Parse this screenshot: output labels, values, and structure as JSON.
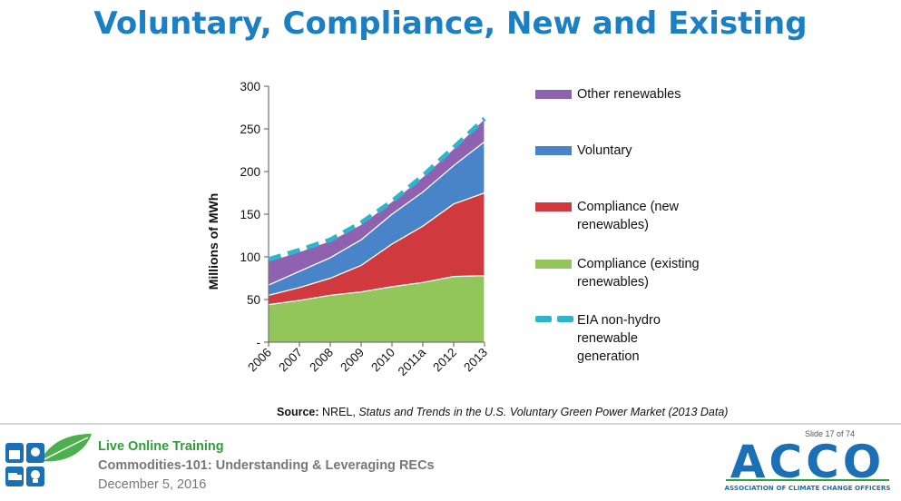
{
  "title": "Voluntary, Compliance, New and Existing",
  "chart_data": {
    "type": "area",
    "categories": [
      "2006",
      "2007",
      "2008",
      "2009",
      "2010",
      "2011a",
      "2012",
      "2013"
    ],
    "ylabel": "Millions of MWh",
    "xlabel": "",
    "ylim": [
      0,
      300
    ],
    "yticks": [
      0,
      50,
      100,
      150,
      200,
      250,
      300
    ],
    "ytick_labels": [
      "-",
      "50",
      "100",
      "150",
      "200",
      "250",
      "300"
    ],
    "stacked": true,
    "series": [
      {
        "name": "Compliance (existing renewables)",
        "color": "#92c55a",
        "values": [
          44,
          49,
          55,
          59,
          65,
          70,
          77,
          78
        ]
      },
      {
        "name": "Compliance (new renewables)",
        "color": "#d0393e",
        "values": [
          11,
          15,
          20,
          31,
          50,
          66,
          85,
          97
        ]
      },
      {
        "name": "Voluntary",
        "color": "#4a84c8",
        "values": [
          12,
          19,
          24,
          30,
          35,
          40,
          45,
          60
        ]
      },
      {
        "name": "Other renewables",
        "color": "#8e62b0",
        "values": [
          28,
          23,
          20,
          18,
          15,
          18,
          20,
          27
        ]
      }
    ],
    "line_series": {
      "name": "EIA non-hydro renewable generation",
      "color": "#30b4c9",
      "style": "dashed",
      "values": [
        97,
        108,
        120,
        140,
        165,
        195,
        228,
        262
      ]
    },
    "legend": [
      {
        "label": "Other renewables",
        "color": "#8e62b0",
        "kind": "swatch"
      },
      {
        "label": "Voluntary",
        "color": "#4a84c8",
        "kind": "swatch"
      },
      {
        "label": "Compliance (new\nrenewables)",
        "color": "#d0393e",
        "kind": "swatch"
      },
      {
        "label": "Compliance (existing\nrenewables)",
        "color": "#92c55a",
        "kind": "swatch"
      },
      {
        "label": "EIA non-hydro\nrenewable\ngeneration",
        "color": "#30b4c9",
        "kind": "dash"
      }
    ],
    "legend_position": "right",
    "grid": false
  },
  "source": {
    "prefix": "Source:",
    "org": " NREL, ",
    "title": "Status and Trends in the U.S. Voluntary Green Power Market (2013 Data)"
  },
  "footer": {
    "slide": "Slide 17 of 74",
    "live": "Live Online Training",
    "course": "Commodities-101: Understanding & Leveraging RECs",
    "date": "December 5, 2016",
    "logo_text": "ACCO",
    "logo_sub": "ASSOCIATION OF CLIMATE CHANGE OFFICERS",
    "brand_blue": "#1b6fb5",
    "brand_green": "#2e9e3a"
  }
}
